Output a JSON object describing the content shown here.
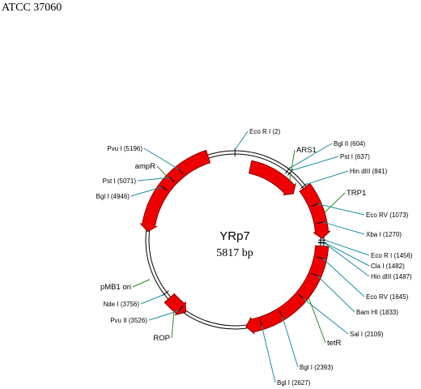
{
  "page_title": "ATCC 37060",
  "plasmid": {
    "name": "YRp7",
    "size": "5817 bp",
    "length_bp": 5817
  },
  "colors": {
    "feature_fill": "#ee0000",
    "feature_stroke": "#880000",
    "site_line": "#1a8fa0",
    "feature_line": "#2a8a20",
    "backbone": "#000000"
  },
  "sites": [
    {
      "id": "ecori-2",
      "label": "Eco R I (2)",
      "position": 2
    },
    {
      "id": "bglii-604",
      "label": "Bgl II (604)",
      "position": 604
    },
    {
      "id": "psti-637",
      "label": "Pst I (637)",
      "position": 637
    },
    {
      "id": "hindiii-841",
      "label": "Hin dIII (841)",
      "position": 841
    },
    {
      "id": "ecorv-1073",
      "label": "Eco RV (1073)",
      "position": 1073
    },
    {
      "id": "xbai-1270",
      "label": "Xba I (1270)",
      "position": 1270
    },
    {
      "id": "ecori-1456",
      "label": "Eco R I (1456)",
      "position": 1456
    },
    {
      "id": "clai-1482",
      "label": "Cla I (1482)",
      "position": 1482
    },
    {
      "id": "hindiii-1487",
      "label": "Hin dIII (1487)",
      "position": 1487
    },
    {
      "id": "ecorv-1645",
      "label": "Eco RV (1645)",
      "position": 1645
    },
    {
      "id": "bamhi-1833",
      "label": "Bam HI (1833)",
      "position": 1833
    },
    {
      "id": "sali-2109",
      "label": "Sal I (2109)",
      "position": 2109
    },
    {
      "id": "bgli-2393",
      "label": "Bgl I (2393)",
      "position": 2393
    },
    {
      "id": "bgli-2627",
      "label": "Bgl I (2627)",
      "position": 2627
    },
    {
      "id": "pvuii-3526",
      "label": "Pvu II (3526)",
      "position": 3526
    },
    {
      "id": "ndei-3756",
      "label": "Nde I (3756)",
      "position": 3756
    },
    {
      "id": "bgli-4946",
      "label": "Bgl I (4946)",
      "position": 4946
    },
    {
      "id": "psti-5071",
      "label": "Pst I (5071)",
      "position": 5071
    },
    {
      "id": "pvui-5196",
      "label": "Pvu I (5196)",
      "position": 5196
    }
  ],
  "features": [
    {
      "id": "ars1",
      "label": "ARS1",
      "start": 195,
      "end": 835,
      "direction": "forward"
    },
    {
      "id": "trp1",
      "label": "TRP1",
      "start": 860,
      "end": 1440,
      "direction": "forward"
    },
    {
      "id": "tetr",
      "label": "tetR",
      "start": 1520,
      "end": 2790,
      "direction": "forward"
    },
    {
      "id": "rop",
      "label": "ROP",
      "start": 3460,
      "end": 3690,
      "direction": "reverse"
    },
    {
      "id": "pmb1-ori",
      "label": "pMB1 ori",
      "start": 3960,
      "end": 3960,
      "direction": "none"
    },
    {
      "id": "ampr",
      "label": "ampR",
      "start": 4450,
      "end": 5530,
      "direction": "reverse"
    }
  ]
}
